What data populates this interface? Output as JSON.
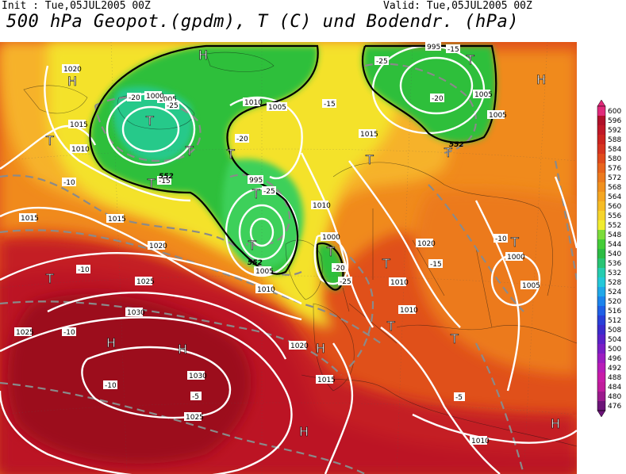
{
  "header": {
    "init": "Init : Tue,05JUL2005 00Z",
    "valid": "Valid: Tue,05JUL2005 00Z",
    "title": "500 hPa Geopot.(gpdm), T (C) und Bodendr. (hPa)"
  },
  "colors": {
    "dark_red": "#a80f1e",
    "red": "#c9241c",
    "orange_red": "#e0501a",
    "orange": "#f08a1c",
    "light_orange": "#f6b22a",
    "yellow": "#f4e22c",
    "light_green": "#6cd63c",
    "green": "#2fbf3a",
    "teal": "#27c98a"
  },
  "legend": {
    "values": [
      "600",
      "596",
      "592",
      "588",
      "584",
      "580",
      "576",
      "572",
      "568",
      "564",
      "560",
      "556",
      "552",
      "548",
      "544",
      "540",
      "536",
      "532",
      "528",
      "524",
      "520",
      "516",
      "512",
      "508",
      "504",
      "500",
      "496",
      "492",
      "488",
      "484",
      "480",
      "476"
    ],
    "colors": [
      "#e02a7a",
      "#b0102a",
      "#c01828",
      "#cc2420",
      "#d63420",
      "#e04a1c",
      "#e8641c",
      "#ec7a1e",
      "#f0901e",
      "#f4a622",
      "#f6bc26",
      "#f6d42c",
      "#f0ec30",
      "#7cdc3a",
      "#44cc38",
      "#2cbc44",
      "#28c474",
      "#26ccb0",
      "#24c8d8",
      "#20a8e8",
      "#1c84ec",
      "#2060e6",
      "#2a40d8",
      "#3c2ccc",
      "#5a22c8",
      "#7a1ec4",
      "#9c1cc0",
      "#b81cb8",
      "#c81ca8",
      "#c01c9c",
      "#9a1a8c",
      "#6c1478"
    ]
  },
  "pressure_labels": [
    "1020",
    "1015",
    "1010",
    "1005",
    "1000",
    "995",
    "1005",
    "1010",
    "1015",
    "1020",
    "1025",
    "1030",
    "1030",
    "1025",
    "1020",
    "1015",
    "1010",
    "1005",
    "1000",
    "995",
    "1005",
    "1010",
    "1015",
    "1020",
    "1025",
    "1000",
    "1005",
    "1010",
    "1015",
    "1010",
    "1005",
    "1000",
    "1010"
  ],
  "temp_labels": [
    "-25",
    "-20",
    "-15",
    "-10",
    "-5",
    "-25",
    "-20",
    "-15",
    "-10",
    "-25",
    "-20",
    "-15",
    "-10",
    "-5",
    "-10",
    "-10",
    "-20",
    "-25",
    "-15"
  ],
  "geopot_labels": [
    "552",
    "552",
    "552"
  ],
  "highs": [
    "H",
    "H",
    "H",
    "H",
    "H",
    "H",
    "H",
    "H"
  ],
  "lows": [
    "T",
    "T",
    "T",
    "T",
    "T",
    "T",
    "T",
    "T",
    "T",
    "T",
    "T",
    "T",
    "T",
    "T",
    "T",
    "T"
  ]
}
